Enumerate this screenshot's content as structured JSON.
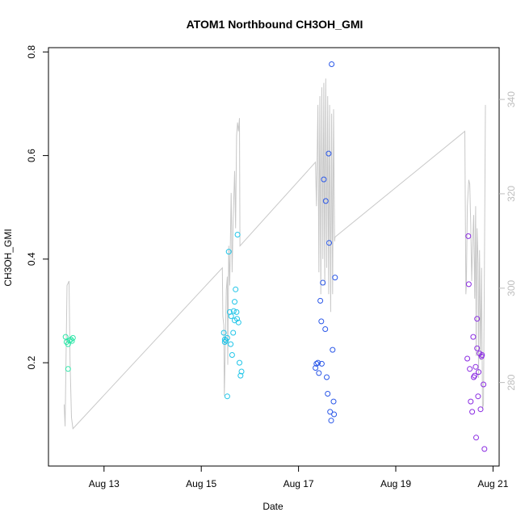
{
  "chart_data": {
    "type": "scatter",
    "title": "ATOM1 Northbound CH3OH_GMI",
    "xlabel": "Date",
    "ylabel": "CH3OH_GMI",
    "x_unit": "day of August",
    "xlim": [
      11.9,
      21.1
    ],
    "ylim": [
      0.0,
      0.81
    ],
    "y_ticks": [
      "0.2",
      "0.4",
      "0.6",
      "0.8"
    ],
    "y_tick_values": [
      0.2,
      0.4,
      0.6,
      0.8
    ],
    "x_ticks": [
      "Aug 13",
      "Aug 15",
      "Aug 17",
      "Aug 19",
      "Aug 21"
    ],
    "x_tick_values": [
      13,
      15,
      17,
      19,
      21
    ],
    "y2_ticks": [
      "280",
      "300",
      "320",
      "340"
    ],
    "y2_tick_values": [
      280,
      300,
      320,
      340
    ],
    "y2lim": [
      261,
      356
    ],
    "grid": false,
    "legend": "none",
    "line_color": "#c8c8c8",
    "series": [
      {
        "color": "#2ee6a8",
        "points": [
          [
            12.25,
            0.25
          ],
          [
            12.27,
            0.24
          ],
          [
            12.3,
            0.236
          ],
          [
            12.33,
            0.243
          ],
          [
            12.36,
            0.245
          ],
          [
            12.3,
            0.188
          ],
          [
            12.4,
            0.248
          ],
          [
            12.38,
            0.242
          ]
        ]
      },
      {
        "color": "#21c5e8",
        "points": [
          [
            15.48,
            0.258
          ],
          [
            15.5,
            0.245
          ],
          [
            15.5,
            0.24
          ],
          [
            15.52,
            0.243
          ],
          [
            15.55,
            0.248
          ],
          [
            15.58,
            0.415
          ],
          [
            15.6,
            0.298
          ],
          [
            15.62,
            0.236
          ],
          [
            15.63,
            0.29
          ],
          [
            15.65,
            0.215
          ],
          [
            15.67,
            0.258
          ],
          [
            15.68,
            0.3
          ],
          [
            15.7,
            0.318
          ],
          [
            15.7,
            0.282
          ],
          [
            15.72,
            0.342
          ],
          [
            15.74,
            0.298
          ],
          [
            15.75,
            0.285
          ],
          [
            15.76,
            0.448
          ],
          [
            15.78,
            0.278
          ],
          [
            15.8,
            0.2
          ],
          [
            15.82,
            0.175
          ],
          [
            15.84,
            0.183
          ],
          [
            15.55,
            0.135
          ]
        ]
      },
      {
        "color": "#2a57e8",
        "points": [
          [
            17.35,
            0.19
          ],
          [
            17.37,
            0.198
          ],
          [
            17.4,
            0.2
          ],
          [
            17.42,
            0.18
          ],
          [
            17.45,
            0.32
          ],
          [
            17.47,
            0.28
          ],
          [
            17.48,
            0.198
          ],
          [
            17.5,
            0.355
          ],
          [
            17.52,
            0.555
          ],
          [
            17.55,
            0.265
          ],
          [
            17.56,
            0.513
          ],
          [
            17.58,
            0.172
          ],
          [
            17.6,
            0.14
          ],
          [
            17.62,
            0.605
          ],
          [
            17.63,
            0.432
          ],
          [
            17.65,
            0.105
          ],
          [
            17.67,
            0.088
          ],
          [
            17.68,
            0.778
          ],
          [
            17.7,
            0.225
          ],
          [
            17.72,
            0.125
          ],
          [
            17.73,
            0.1
          ],
          [
            17.75,
            0.365
          ]
        ]
      },
      {
        "color": "#8a2be2",
        "points": [
          [
            20.45,
            0.208
          ],
          [
            20.47,
            0.445
          ],
          [
            20.48,
            0.352
          ],
          [
            20.5,
            0.188
          ],
          [
            20.52,
            0.125
          ],
          [
            20.55,
            0.105
          ],
          [
            20.57,
            0.25
          ],
          [
            20.58,
            0.172
          ],
          [
            20.6,
            0.175
          ],
          [
            20.62,
            0.192
          ],
          [
            20.63,
            0.055
          ],
          [
            20.65,
            0.228
          ],
          [
            20.65,
            0.285
          ],
          [
            20.67,
            0.135
          ],
          [
            20.68,
            0.182
          ],
          [
            20.7,
            0.218
          ],
          [
            20.72,
            0.11
          ],
          [
            20.74,
            0.212
          ],
          [
            20.75,
            0.215
          ],
          [
            20.78,
            0.158
          ],
          [
            20.8,
            0.033
          ]
        ]
      }
    ],
    "altitude_line": [
      [
        12.22,
        275
      ],
      [
        12.24,
        270
      ],
      [
        12.28,
        302
      ],
      [
        12.32,
        303
      ],
      [
        12.34,
        285
      ],
      [
        12.37,
        272
      ],
      [
        12.4,
        269.5
      ],
      [
        15.45,
        306
      ],
      [
        15.46,
        295
      ],
      [
        15.48,
        293
      ],
      [
        15.49,
        277
      ],
      [
        15.5,
        282
      ],
      [
        15.52,
        295
      ],
      [
        15.53,
        301
      ],
      [
        15.55,
        304
      ],
      [
        15.56,
        284
      ],
      [
        15.58,
        311
      ],
      [
        15.6,
        302
      ],
      [
        15.63,
        323
      ],
      [
        15.65,
        305
      ],
      [
        15.67,
        317
      ],
      [
        15.7,
        328
      ],
      [
        15.72,
        315
      ],
      [
        15.74,
        336
      ],
      [
        15.76,
        339
      ],
      [
        15.78,
        337
      ],
      [
        15.8,
        340
      ],
      [
        15.81,
        311
      ],
      [
        17.35,
        330
      ],
      [
        17.37,
        320
      ],
      [
        17.4,
        343
      ],
      [
        17.42,
        305
      ],
      [
        17.44,
        345
      ],
      [
        17.46,
        300
      ],
      [
        17.48,
        347
      ],
      [
        17.5,
        308
      ],
      [
        17.52,
        348
      ],
      [
        17.54,
        302
      ],
      [
        17.56,
        349
      ],
      [
        17.58,
        306
      ],
      [
        17.6,
        345
      ],
      [
        17.62,
        300
      ],
      [
        17.64,
        343
      ],
      [
        17.66,
        296
      ],
      [
        17.68,
        341
      ],
      [
        17.7,
        300
      ],
      [
        17.72,
        342
      ],
      [
        17.74,
        312
      ],
      [
        17.75,
        313
      ],
      [
        20.4,
        337
      ],
      [
        20.42,
        300
      ],
      [
        20.43,
        302
      ],
      [
        20.45,
        320
      ],
      [
        20.47,
        324
      ],
      [
        20.48,
        326
      ],
      [
        20.5,
        325
      ],
      [
        20.52,
        316
      ],
      [
        20.54,
        303
      ],
      [
        20.56,
        312
      ],
      [
        20.58,
        318
      ],
      [
        20.6,
        299
      ],
      [
        20.62,
        320
      ],
      [
        20.63,
        286
      ],
      [
        20.65,
        315
      ],
      [
        20.67,
        307
      ],
      [
        20.68,
        281
      ],
      [
        20.7,
        310
      ],
      [
        20.72,
        285
      ],
      [
        20.74,
        306
      ],
      [
        20.76,
        274
      ],
      [
        20.78,
        275
      ],
      [
        20.8,
        307
      ],
      [
        20.82,
        343
      ]
    ]
  }
}
